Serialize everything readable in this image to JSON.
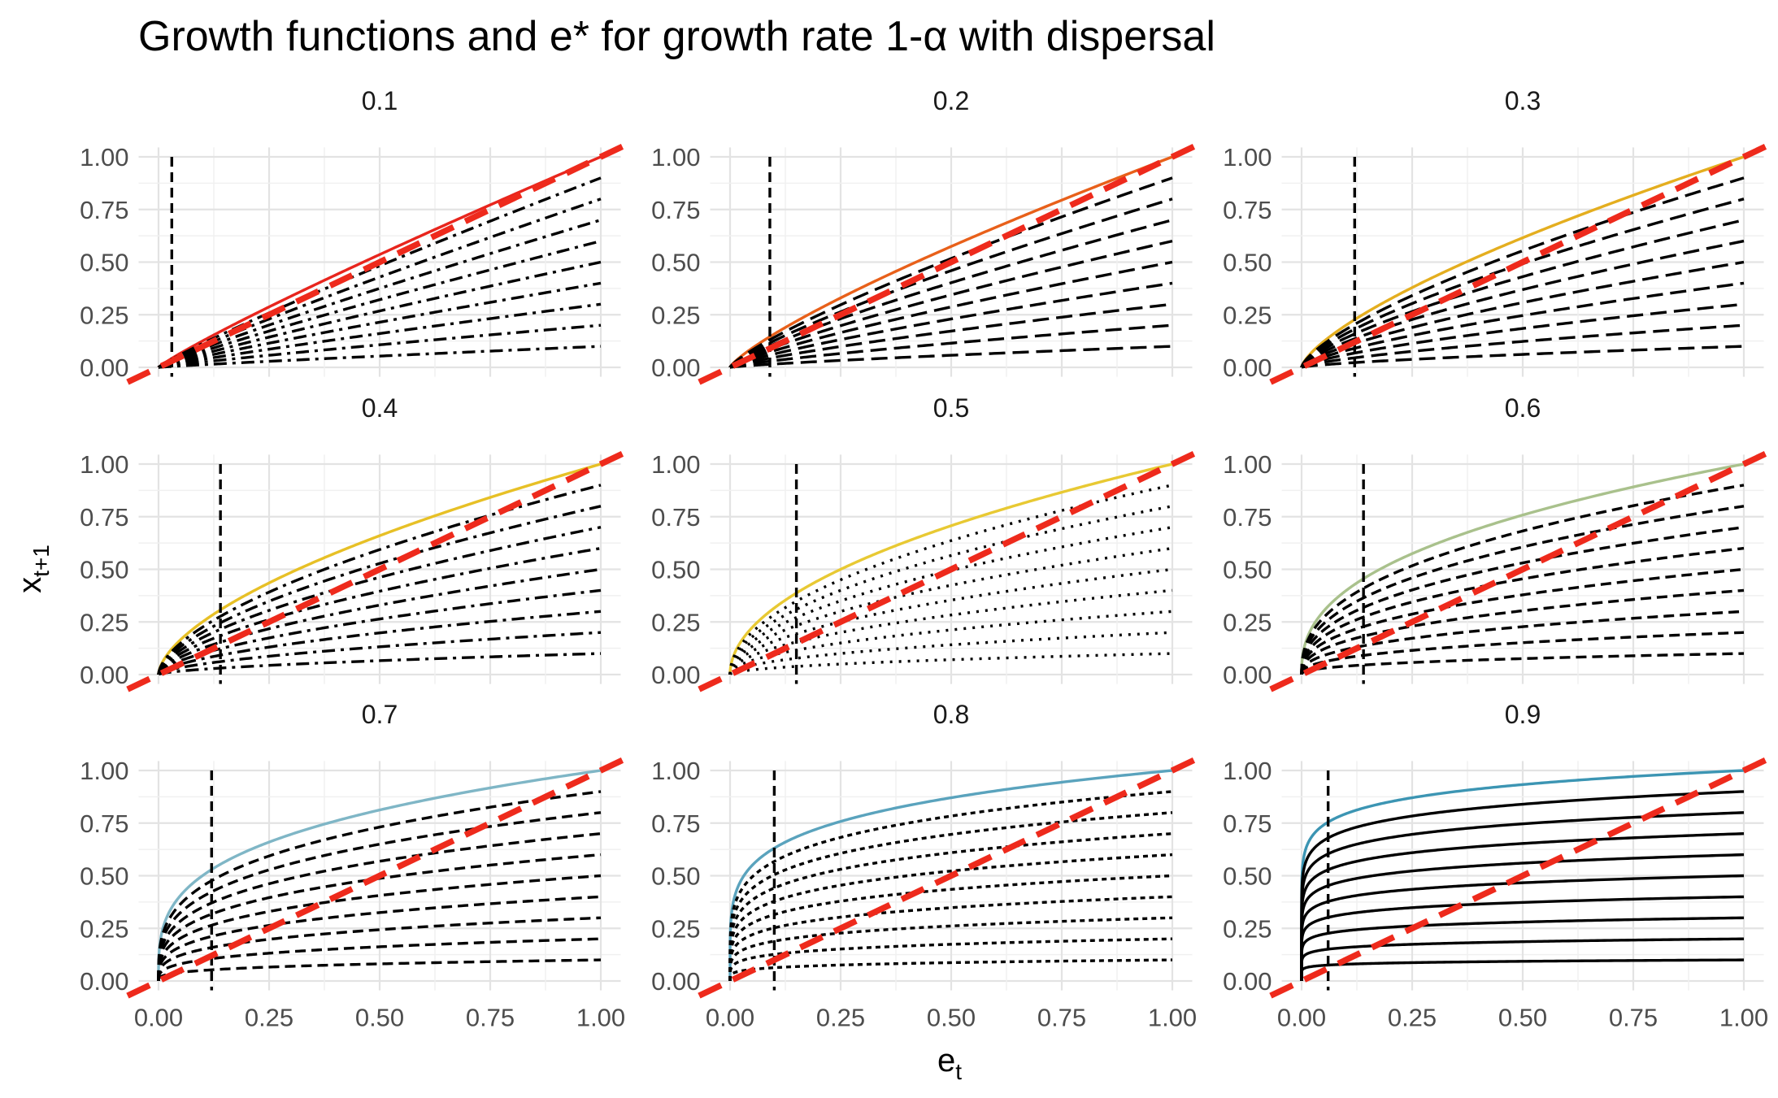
{
  "chart_data": {
    "type": "line",
    "title": "Growth functions and e* for growth rate 1-α with dispersal",
    "xlabel": "e",
    "xlabel_sub": "t",
    "ylabel": "x",
    "ylabel_sub": "t+1",
    "xlim": [
      0,
      1
    ],
    "ylim": [
      0,
      1
    ],
    "x_ticks": [
      "0.00",
      "0.25",
      "0.50",
      "0.75",
      "1.00"
    ],
    "y_ticks": [
      "0.00",
      "0.25",
      "0.50",
      "0.75",
      "1.00"
    ],
    "grid": true,
    "legend": "none",
    "curve_scales": [
      1.0,
      0.9,
      0.8,
      0.7,
      0.6,
      0.5,
      0.4,
      0.3,
      0.2,
      0.1
    ],
    "reference_line": {
      "type": "identity",
      "color": "#ee2a1c"
    },
    "panels": [
      {
        "label": "0.1",
        "exponent": 0.9,
        "e_star": 0.03,
        "color": "#e8251d",
        "inner_line_style": "dash-dot"
      },
      {
        "label": "0.2",
        "exponent": 0.8,
        "e_star": 0.09,
        "color": "#e8601a",
        "inner_line_style": "long-dash"
      },
      {
        "label": "0.3",
        "exponent": 0.7,
        "e_star": 0.12,
        "color": "#e4ae1f",
        "inner_line_style": "long-dash"
      },
      {
        "label": "0.4",
        "exponent": 0.6,
        "e_star": 0.14,
        "color": "#e7c026",
        "inner_line_style": "dash-dot"
      },
      {
        "label": "0.5",
        "exponent": 0.5,
        "e_star": 0.15,
        "color": "#e8c933",
        "inner_line_style": "dotted"
      },
      {
        "label": "0.6",
        "exponent": 0.4,
        "e_star": 0.14,
        "color": "#a9c18c",
        "inner_line_style": "dashed"
      },
      {
        "label": "0.7",
        "exponent": 0.3,
        "e_star": 0.12,
        "color": "#7fb6c6",
        "inner_line_style": "dashed"
      },
      {
        "label": "0.8",
        "exponent": 0.2,
        "e_star": 0.1,
        "color": "#5aa3bd",
        "inner_line_style": "fine-dash"
      },
      {
        "label": "0.9",
        "exponent": 0.1,
        "e_star": 0.06,
        "color": "#3c95b3",
        "inner_line_style": "solid"
      }
    ]
  }
}
